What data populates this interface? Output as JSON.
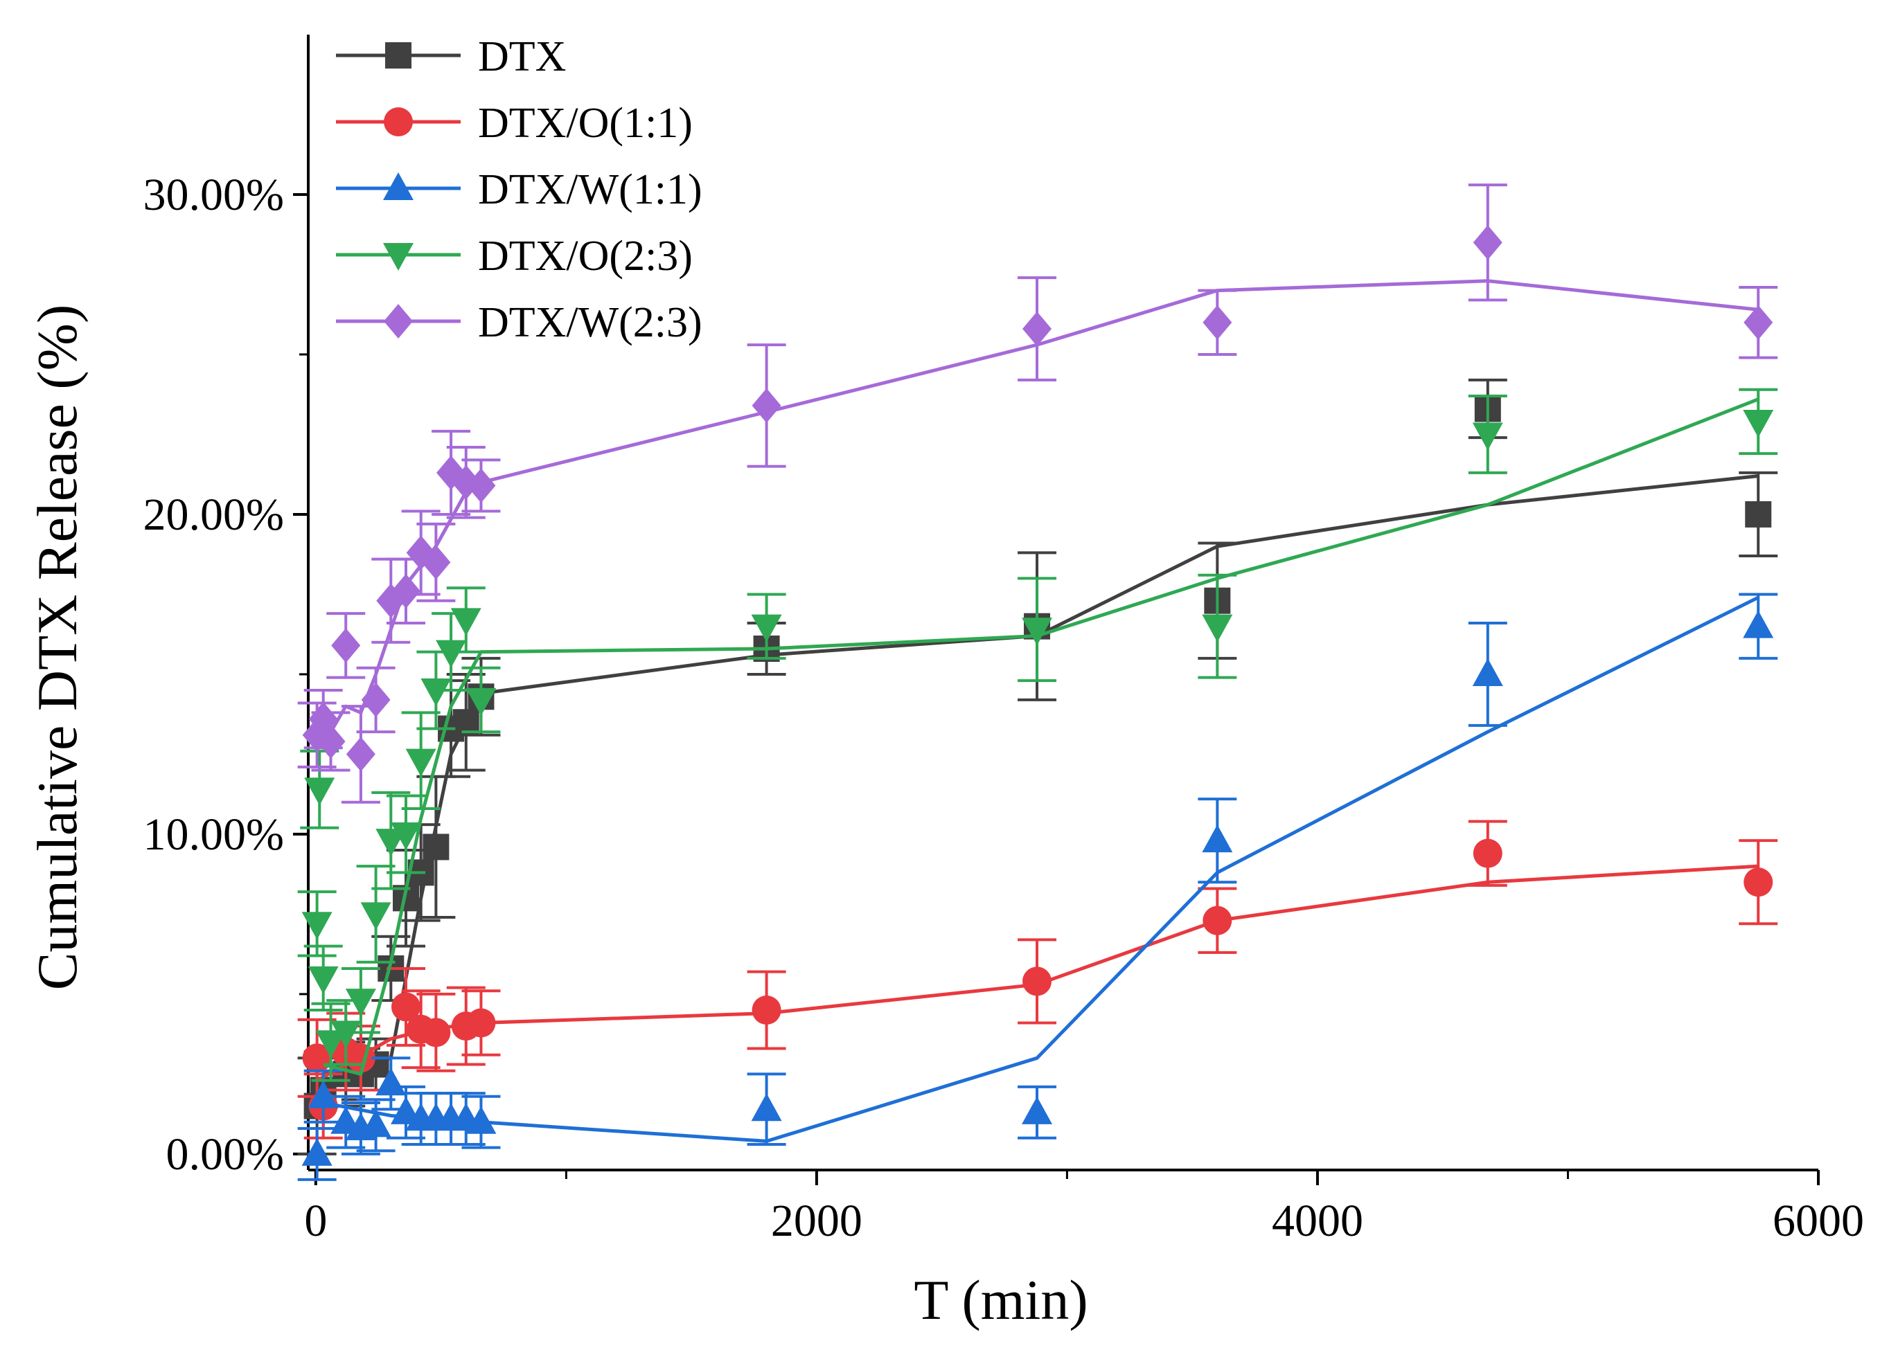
{
  "chart_data": {
    "type": "scatter",
    "title": "",
    "xlabel": "T (min)",
    "ylabel": "Cumulative DTX Release (%)",
    "xlim": [
      -30,
      6000
    ],
    "ylim": [
      -0.5,
      35
    ],
    "x_ticks": [
      0,
      2000,
      4000,
      6000
    ],
    "y_ticks": [
      0,
      10,
      20,
      30
    ],
    "x_tick_labels": [
      "0",
      "2000",
      "4000",
      "6000"
    ],
    "y_tick_labels": [
      "0.00%",
      "10.00%",
      "20.00%",
      "30.00%"
    ],
    "grid": false,
    "legend_position": "top-left",
    "series": [
      {
        "name": "DTX",
        "color": "#404040",
        "marker": "square",
        "points": [
          {
            "x": 5,
            "y": 1.5,
            "err": 1.5
          },
          {
            "x": 30,
            "y": 2.0,
            "err": 1.2
          },
          {
            "x": 120,
            "y": 2.5,
            "err": 1.0
          },
          {
            "x": 180,
            "y": 2.5,
            "err": 0.8
          },
          {
            "x": 240,
            "y": 2.8,
            "err": 0.8
          },
          {
            "x": 300,
            "y": 5.8,
            "err": 1.0
          },
          {
            "x": 360,
            "y": 8.0,
            "err": 1.5
          },
          {
            "x": 420,
            "y": 8.8,
            "err": 1.5
          },
          {
            "x": 480,
            "y": 9.6,
            "err": 2.2
          },
          {
            "x": 540,
            "y": 13.3,
            "err": 1.5
          },
          {
            "x": 600,
            "y": 13.5,
            "err": 1.5
          },
          {
            "x": 660,
            "y": 14.3,
            "err": 1.2
          },
          {
            "x": 1800,
            "y": 15.8,
            "err": 0.8
          },
          {
            "x": 2880,
            "y": 16.5,
            "err": 2.3
          },
          {
            "x": 3600,
            "y": 17.3,
            "err": 1.8
          },
          {
            "x": 4680,
            "y": 23.3,
            "err": 0.9
          },
          {
            "x": 5760,
            "y": 20.0,
            "err": 1.3
          }
        ],
        "fit": [
          [
            30,
            2.5
          ],
          [
            300,
            3.0
          ],
          [
            420,
            8.0
          ],
          [
            540,
            12.5
          ],
          [
            660,
            14.4
          ],
          [
            1800,
            15.6
          ],
          [
            2880,
            16.2
          ],
          [
            3600,
            19.0
          ],
          [
            4680,
            20.3
          ],
          [
            5760,
            21.2
          ]
        ]
      },
      {
        "name": "DTX/O(1:1)",
        "color": "#e8393f",
        "marker": "circle",
        "points": [
          {
            "x": 5,
            "y": 3.0,
            "err": 1.2
          },
          {
            "x": 30,
            "y": 1.5,
            "err": 1.0
          },
          {
            "x": 120,
            "y": 3.2,
            "err": 1.2
          },
          {
            "x": 180,
            "y": 3.0,
            "err": 1.0
          },
          {
            "x": 360,
            "y": 4.6,
            "err": 1.2
          },
          {
            "x": 420,
            "y": 3.9,
            "err": 1.2
          },
          {
            "x": 480,
            "y": 3.8,
            "err": 1.2
          },
          {
            "x": 600,
            "y": 4.0,
            "err": 1.2
          },
          {
            "x": 660,
            "y": 4.1,
            "err": 1.0
          },
          {
            "x": 1800,
            "y": 4.5,
            "err": 1.2
          },
          {
            "x": 2880,
            "y": 5.4,
            "err": 1.3
          },
          {
            "x": 3600,
            "y": 7.3,
            "err": 1.0
          },
          {
            "x": 4680,
            "y": 9.4,
            "err": 1.0
          },
          {
            "x": 5760,
            "y": 8.5,
            "err": 1.3
          }
        ],
        "fit": [
          [
            5,
            2.3
          ],
          [
            120,
            2.8
          ],
          [
            300,
            3.6
          ],
          [
            450,
            3.9
          ],
          [
            660,
            4.1
          ],
          [
            1800,
            4.4
          ],
          [
            2880,
            5.3
          ],
          [
            3600,
            7.3
          ],
          [
            4680,
            8.5
          ],
          [
            5760,
            9.0
          ]
        ]
      },
      {
        "name": "DTX/W(1:1)",
        "color": "#1f6fd6",
        "marker": "triangle-up",
        "points": [
          {
            "x": 5,
            "y": 0.0,
            "err": 0.8
          },
          {
            "x": 30,
            "y": 1.8,
            "err": 0.8
          },
          {
            "x": 120,
            "y": 1.0,
            "err": 0.8
          },
          {
            "x": 180,
            "y": 0.8,
            "err": 0.8
          },
          {
            "x": 240,
            "y": 0.9,
            "err": 0.8
          },
          {
            "x": 300,
            "y": 2.2,
            "err": 0.8
          },
          {
            "x": 360,
            "y": 1.3,
            "err": 0.8
          },
          {
            "x": 420,
            "y": 1.1,
            "err": 0.8
          },
          {
            "x": 480,
            "y": 1.1,
            "err": 0.8
          },
          {
            "x": 540,
            "y": 1.1,
            "err": 0.8
          },
          {
            "x": 600,
            "y": 1.1,
            "err": 0.8
          },
          {
            "x": 660,
            "y": 1.0,
            "err": 0.8
          },
          {
            "x": 1800,
            "y": 1.4,
            "err": 1.1
          },
          {
            "x": 2880,
            "y": 1.3,
            "err": 0.8
          },
          {
            "x": 3600,
            "y": 9.8,
            "err": 1.3
          },
          {
            "x": 4680,
            "y": 15.0,
            "err": 1.6
          },
          {
            "x": 5760,
            "y": 16.5,
            "err": 1.0
          }
        ],
        "fit": [
          [
            30,
            1.6
          ],
          [
            300,
            1.2
          ],
          [
            660,
            1.0
          ],
          [
            1800,
            0.4
          ],
          [
            2880,
            3.0
          ],
          [
            3600,
            8.8
          ],
          [
            4680,
            13.2
          ],
          [
            5760,
            17.4
          ]
        ]
      },
      {
        "name": "DTX/O(2:3)",
        "color": "#2fa853",
        "marker": "triangle-down",
        "points": [
          {
            "x": 5,
            "y": 7.2,
            "err": 1.0
          },
          {
            "x": 15,
            "y": 11.4,
            "err": 1.2
          },
          {
            "x": 30,
            "y": 5.5,
            "err": 1.0
          },
          {
            "x": 60,
            "y": 3.5,
            "err": 1.2
          },
          {
            "x": 120,
            "y": 3.8,
            "err": 1.0
          },
          {
            "x": 180,
            "y": 4.8,
            "err": 1.0
          },
          {
            "x": 240,
            "y": 7.5,
            "err": 1.5
          },
          {
            "x": 300,
            "y": 9.8,
            "err": 1.5
          },
          {
            "x": 360,
            "y": 10.0,
            "err": 1.2
          },
          {
            "x": 420,
            "y": 12.3,
            "err": 1.5
          },
          {
            "x": 480,
            "y": 14.5,
            "err": 1.2
          },
          {
            "x": 540,
            "y": 15.7,
            "err": 1.2
          },
          {
            "x": 600,
            "y": 16.7,
            "err": 1.0
          },
          {
            "x": 660,
            "y": 14.2,
            "err": 1.0
          },
          {
            "x": 1800,
            "y": 16.5,
            "err": 1.0
          },
          {
            "x": 2880,
            "y": 16.4,
            "err": 1.6
          },
          {
            "x": 3600,
            "y": 16.5,
            "err": 1.6
          },
          {
            "x": 4680,
            "y": 22.5,
            "err": 1.2
          },
          {
            "x": 5760,
            "y": 22.9,
            "err": 1.0
          }
        ],
        "fit": [
          [
            30,
            2.8
          ],
          [
            180,
            2.5
          ],
          [
            300,
            6.0
          ],
          [
            420,
            10.5
          ],
          [
            540,
            14.0
          ],
          [
            660,
            15.7
          ],
          [
            1800,
            15.8
          ],
          [
            2880,
            16.2
          ],
          [
            3600,
            18.0
          ],
          [
            4680,
            20.3
          ],
          [
            5760,
            23.6
          ]
        ]
      },
      {
        "name": "DTX/W(2:3)",
        "color": "#a56ad8",
        "marker": "diamond",
        "points": [
          {
            "x": 5,
            "y": 13.1,
            "err": 1.0
          },
          {
            "x": 30,
            "y": 13.6,
            "err": 0.9
          },
          {
            "x": 60,
            "y": 12.9,
            "err": 0.9
          },
          {
            "x": 120,
            "y": 15.9,
            "err": 1.0
          },
          {
            "x": 180,
            "y": 12.5,
            "err": 1.5
          },
          {
            "x": 240,
            "y": 14.2,
            "err": 1.0
          },
          {
            "x": 300,
            "y": 17.3,
            "err": 1.3
          },
          {
            "x": 360,
            "y": 17.6,
            "err": 1.0
          },
          {
            "x": 420,
            "y": 18.8,
            "err": 1.3
          },
          {
            "x": 480,
            "y": 18.5,
            "err": 1.2
          },
          {
            "x": 540,
            "y": 21.3,
            "err": 1.3
          },
          {
            "x": 600,
            "y": 21.0,
            "err": 1.1
          },
          {
            "x": 660,
            "y": 20.9,
            "err": 0.8
          },
          {
            "x": 1800,
            "y": 23.4,
            "err": 1.9
          },
          {
            "x": 2880,
            "y": 25.8,
            "err": 1.6
          },
          {
            "x": 3600,
            "y": 26.0,
            "err": 1.0
          },
          {
            "x": 4680,
            "y": 28.5,
            "err": 1.8
          },
          {
            "x": 5760,
            "y": 26.0,
            "err": 1.1
          }
        ],
        "fit": [
          [
            5,
            13.0
          ],
          [
            60,
            13.2
          ],
          [
            120,
            14.0
          ],
          [
            180,
            13.8
          ],
          [
            240,
            15.0
          ],
          [
            360,
            17.8
          ],
          [
            480,
            19.0
          ],
          [
            600,
            20.7
          ],
          [
            660,
            21.0
          ],
          [
            1800,
            23.2
          ],
          [
            2880,
            25.3
          ],
          [
            3600,
            27.0
          ],
          [
            4680,
            27.3
          ],
          [
            5760,
            26.4
          ]
        ]
      }
    ]
  }
}
